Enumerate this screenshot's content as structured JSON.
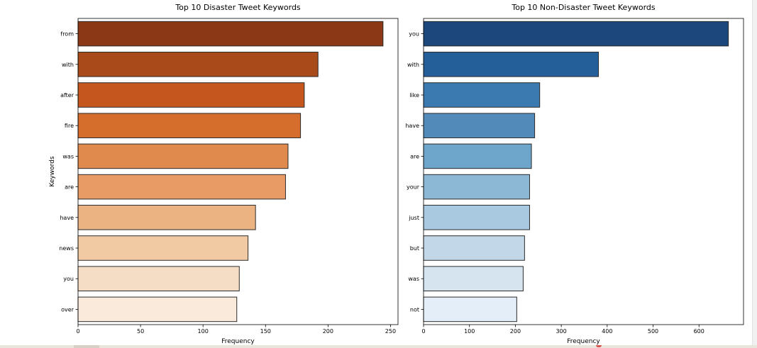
{
  "chart_data": [
    {
      "type": "bar",
      "orientation": "horizontal",
      "title": "Top 10 Disaster Tweet Keywords",
      "xlabel": "Frequency",
      "ylabel": "Keywords",
      "categories": [
        "from",
        "with",
        "after",
        "fire",
        "was",
        "are",
        "have",
        "news",
        "you",
        "over"
      ],
      "values": [
        244,
        192,
        181,
        178,
        168,
        166,
        142,
        136,
        129,
        127
      ],
      "xlim": [
        0,
        256
      ],
      "xticks": [
        0,
        50,
        100,
        150,
        200,
        250
      ],
      "grid": false,
      "palette": "Oranges",
      "colors": [
        "#8a3816",
        "#a84a19",
        "#c4561e",
        "#d56d2c",
        "#e18a4d",
        "#e89b64",
        "#ecb382",
        "#f1caa3",
        "#f5dcc4",
        "#f9eadc"
      ]
    },
    {
      "type": "bar",
      "orientation": "horizontal",
      "title": "Top 10 Non-Disaster Tweet Keywords",
      "xlabel": "Frequency",
      "ylabel": "",
      "categories": [
        "you",
        "with",
        "like",
        "have",
        "are",
        "your",
        "just",
        "but",
        "was",
        "not"
      ],
      "values": [
        664,
        381,
        253,
        242,
        235,
        231,
        231,
        220,
        217,
        203
      ],
      "xlim": [
        0,
        697
      ],
      "xticks": [
        0,
        100,
        200,
        300,
        400,
        500,
        600
      ],
      "grid": false,
      "palette": "Blues",
      "colors": [
        "#1b477d",
        "#255f9a",
        "#3a7ab0",
        "#528bba",
        "#6ea5cb",
        "#8cb8d6",
        "#a9c9e0",
        "#c2d8e8",
        "#d6e4f0",
        "#e4eef8"
      ]
    }
  ]
}
